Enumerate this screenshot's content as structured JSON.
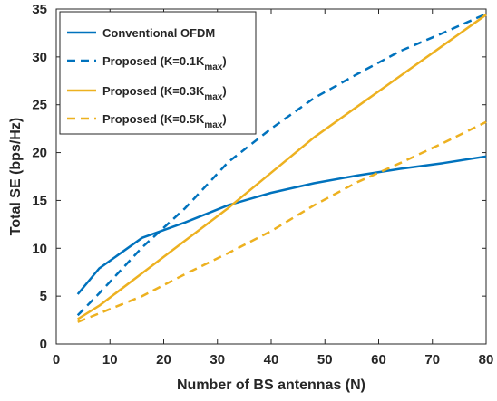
{
  "chart_data": {
    "type": "line",
    "title": "",
    "xlabel": "Number of BS antennas (N)",
    "ylabel": "Total SE (bps/Hz)",
    "xlim": [
      0,
      80
    ],
    "ylim": [
      0,
      35
    ],
    "xticks": [
      0,
      10,
      20,
      30,
      40,
      50,
      60,
      70,
      80
    ],
    "yticks": [
      0,
      5,
      10,
      15,
      20,
      25,
      30,
      35
    ],
    "grid": false,
    "legend_position": "top-left",
    "series": [
      {
        "name": "Conventional OFDM",
        "legend_main": "Conventional OFDM",
        "legend_sub": "",
        "legend_tail": "",
        "color": "#0072BD",
        "dash": "solid",
        "x": [
          4,
          8,
          16,
          24,
          32,
          40,
          48,
          56,
          64,
          72,
          80
        ],
        "y": [
          5.2,
          7.9,
          11.1,
          12.7,
          14.5,
          15.8,
          16.8,
          17.6,
          18.3,
          18.9,
          19.6
        ]
      },
      {
        "name": "Proposed (K=0.1Kmax)",
        "legend_main": "Proposed (K=0.1K",
        "legend_sub": "max",
        "legend_tail": ")",
        "color": "#0072BD",
        "dash": "dashed",
        "x": [
          4,
          8,
          16,
          24,
          32,
          40,
          48,
          56,
          64,
          72,
          80
        ],
        "y": [
          3.0,
          5.3,
          10.1,
          14.2,
          19.0,
          22.5,
          25.7,
          28.2,
          30.6,
          32.5,
          34.5
        ]
      },
      {
        "name": "Proposed (K=0.3Kmax)",
        "legend_main": "Proposed (K=0.3K",
        "legend_sub": "max",
        "legend_tail": ")",
        "color": "#EDB120",
        "dash": "solid",
        "x": [
          4,
          8,
          16,
          24,
          32,
          40,
          48,
          56,
          64,
          72,
          80
        ],
        "y": [
          2.6,
          4.0,
          7.4,
          10.8,
          14.2,
          17.9,
          21.6,
          24.8,
          28.0,
          31.2,
          34.4
        ]
      },
      {
        "name": "Proposed (K=0.5Kmax)",
        "legend_main": "Proposed (K=0.5K",
        "legend_sub": "max",
        "legend_tail": ")",
        "color": "#EDB120",
        "dash": "dashed",
        "x": [
          4,
          8,
          16,
          24,
          32,
          40,
          48,
          56,
          64,
          72,
          80
        ],
        "y": [
          2.3,
          3.2,
          5.0,
          7.3,
          9.5,
          11.8,
          14.5,
          16.9,
          18.9,
          21.0,
          23.2
        ]
      }
    ]
  }
}
